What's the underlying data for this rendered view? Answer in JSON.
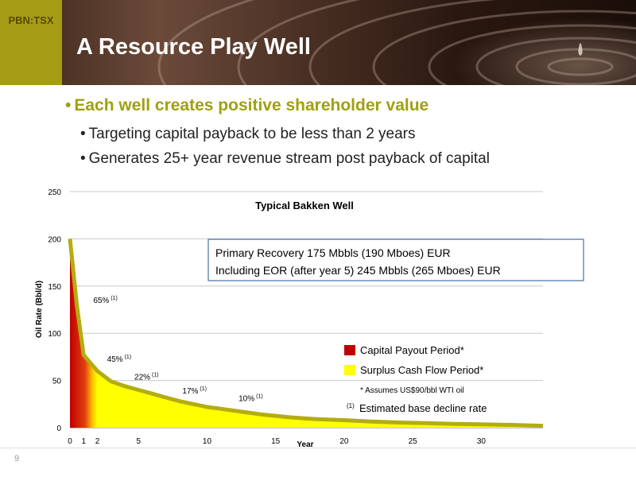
{
  "header": {
    "ticker": "PBN:TSX",
    "title": "A Resource Play Well"
  },
  "bullets": {
    "main": "Each well creates positive shareholder value",
    "sub1": "Targeting capital payback to be less than 2 years",
    "sub2": "Generates 25+ year revenue stream post payback of capital",
    "marker": "•"
  },
  "slide_number": "9",
  "colors": {
    "accent": "#a69c16",
    "payout": "#c00000",
    "surplus": "#ffff00",
    "curve": "#b3ad12"
  },
  "chart_data": {
    "type": "area",
    "title": "Typical Bakken Well",
    "xlabel": "Year",
    "ylabel": "Oil Rate (Bbl/d)",
    "xlim": [
      0,
      34.5
    ],
    "ylim": [
      0,
      250
    ],
    "x_ticks": [
      0,
      1,
      2,
      5,
      10,
      15,
      20,
      25,
      30
    ],
    "y_ticks": [
      0,
      50,
      100,
      150,
      200,
      250
    ],
    "grid": true,
    "series": [
      {
        "x": [
          0,
          0.5,
          1,
          2,
          3,
          4,
          5,
          6,
          7,
          8,
          9,
          10,
          11,
          12,
          13,
          14,
          15,
          16,
          17,
          18,
          20,
          22,
          24,
          26,
          28,
          30,
          32,
          34.5
        ],
        "values": [
          200,
          130,
          77,
          60,
          49,
          44,
          40,
          36,
          32,
          28,
          25,
          22,
          20,
          18,
          16,
          14,
          12.5,
          11,
          10,
          9,
          8,
          6.5,
          5.5,
          4.8,
          4,
          3.5,
          3,
          2
        ]
      }
    ],
    "payout_end_year": 2,
    "curve_annotations": [
      {
        "x": 1.7,
        "y": 132,
        "text": "65%",
        "sup": "(1)"
      },
      {
        "x": 2.7,
        "y": 70,
        "text": "45%",
        "sup": "(1)"
      },
      {
        "x": 4.7,
        "y": 51,
        "text": "22%",
        "sup": "(1)"
      },
      {
        "x": 8.2,
        "y": 36,
        "text": "17%",
        "sup": "(1)"
      },
      {
        "x": 12.3,
        "y": 28,
        "text": "10%",
        "sup": "(1)"
      }
    ],
    "eur_box": {
      "line1": "Primary Recovery 175 Mbbls (190 Mboes) EUR",
      "line2": "Including EOR (after year 5) 245 Mbbls (265 Mboes) EUR"
    },
    "legend": [
      {
        "label": "Capital Payout Period*",
        "color": "#c00000"
      },
      {
        "label": "Surplus Cash Flow Period*",
        "color": "#ffff00"
      }
    ],
    "notes": {
      "assumption": "* Assumes US$90/bbl WTI oil",
      "footnote_sup": "(1)",
      "footnote": "Estimated base decline rate"
    }
  }
}
